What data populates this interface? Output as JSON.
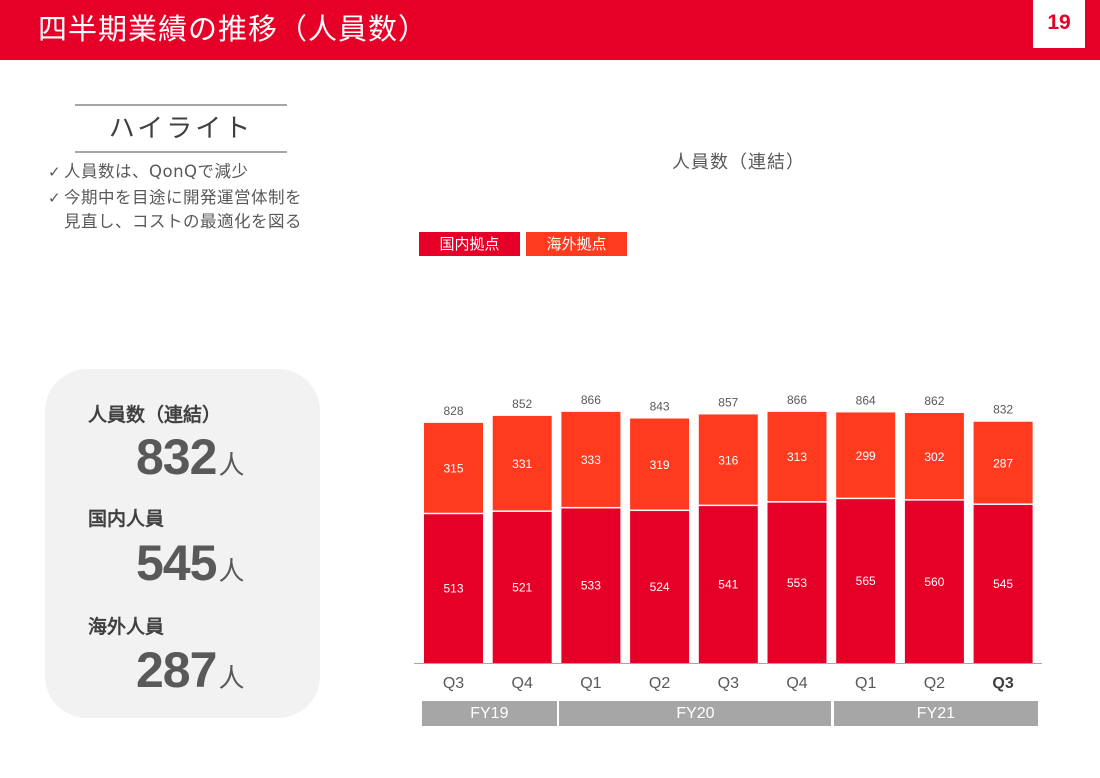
{
  "header": {
    "title": "四半期業績の推移（人員数）",
    "page_number": "19"
  },
  "highlight": {
    "title": "ハイライト",
    "bullets": [
      {
        "icon": "check-icon",
        "text": "人員数は、QonQで減少"
      },
      {
        "icon": "check-icon",
        "text": "今期中を目途に開発運営体制を\n見直し、コストの最適化を図る"
      }
    ]
  },
  "kpi": {
    "items": [
      {
        "label": "人員数（連結）",
        "value": "832",
        "unit": "人"
      },
      {
        "label": "国内人員",
        "value": "545",
        "unit": "人"
      },
      {
        "label": "海外人員",
        "value": "287",
        "unit": "人"
      }
    ]
  },
  "colors": {
    "brand": "#e60027",
    "domestic": "#e60027",
    "overseas": "#ff3a1f",
    "fiscal_band": "#a6a6a6"
  },
  "chart_data": {
    "type": "bar",
    "stacked": true,
    "title": "人員数（連結）",
    "xlabel": "",
    "ylabel": "",
    "ylim": [
      0,
      900
    ],
    "grid": false,
    "legend_position": "top-left",
    "categories": [
      "Q3",
      "Q4",
      "Q1",
      "Q2",
      "Q3",
      "Q4",
      "Q1",
      "Q2",
      "Q3"
    ],
    "highlighted_category_index": 8,
    "fiscal_years": [
      {
        "label": "FY19",
        "start": 0,
        "end": 1
      },
      {
        "label": "FY20",
        "start": 2,
        "end": 5
      },
      {
        "label": "FY21",
        "start": 6,
        "end": 8
      }
    ],
    "series": [
      {
        "name": "国内拠点",
        "color": "#e60027",
        "values": [
          513,
          521,
          533,
          524,
          541,
          553,
          565,
          560,
          545
        ]
      },
      {
        "name": "海外拠点",
        "color": "#ff3a1f",
        "values": [
          315,
          331,
          333,
          319,
          316,
          313,
          299,
          302,
          287
        ]
      }
    ],
    "totals": [
      828,
      852,
      866,
      843,
      857,
      866,
      864,
      862,
      832
    ]
  }
}
